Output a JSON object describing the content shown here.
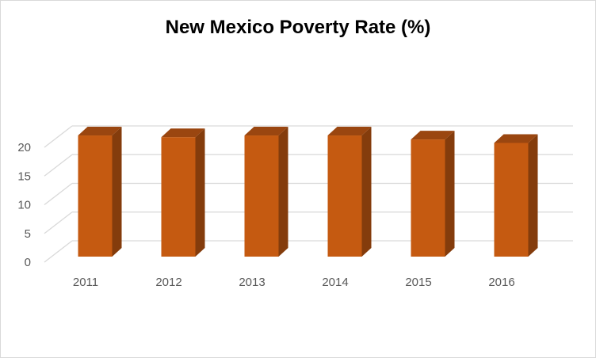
{
  "chart_data": {
    "type": "bar",
    "style": "3d-column",
    "title": "New Mexico Poverty Rate (%)",
    "categories": [
      "2011",
      "2012",
      "2013",
      "2014",
      "2015",
      "2016"
    ],
    "values": [
      21.1,
      20.8,
      21.1,
      21.1,
      20.4,
      19.8
    ],
    "xlabel": "",
    "ylabel": "",
    "ylim": [
      0,
      20
    ],
    "yticks": [
      "0",
      "5",
      "10",
      "15",
      "20"
    ],
    "grid": true,
    "legend": "none",
    "colors": {
      "front": "#c55a11",
      "side": "#843c0c",
      "top": "#9a4610",
      "grid": "#d9d9d9"
    }
  }
}
